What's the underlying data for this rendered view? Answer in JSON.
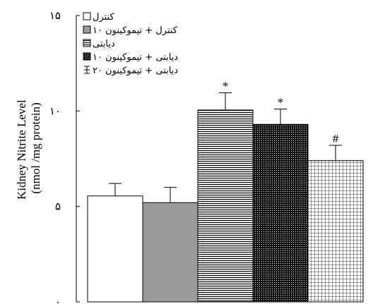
{
  "chart_data": {
    "type": "bar",
    "ylabel_line1": "Kidney Nitrite Level",
    "ylabel_line2": "(nmol /mg protein)",
    "ylim": [
      0,
      15
    ],
    "yticks": [
      0,
      5,
      10,
      15
    ],
    "ytick_labels": [
      "۰",
      "۵",
      "۱۰",
      "۱۵"
    ],
    "categories": [
      "کنترل",
      "کنترل + تیموکینون ۱۰",
      "دیابتی",
      "دیابتی + تیموکینون ۱۰",
      "دیابتی + تیموکینون ۲۰"
    ],
    "values": [
      5.55,
      5.2,
      10.05,
      9.3,
      7.4
    ],
    "errors": [
      0.65,
      0.8,
      0.9,
      0.8,
      0.8
    ],
    "significance": [
      "",
      "",
      "*",
      "*",
      "#"
    ],
    "patterns": [
      "white",
      "gray",
      "horizontal-lines",
      "dots",
      "grid"
    ],
    "legend_placement": "top-left"
  }
}
